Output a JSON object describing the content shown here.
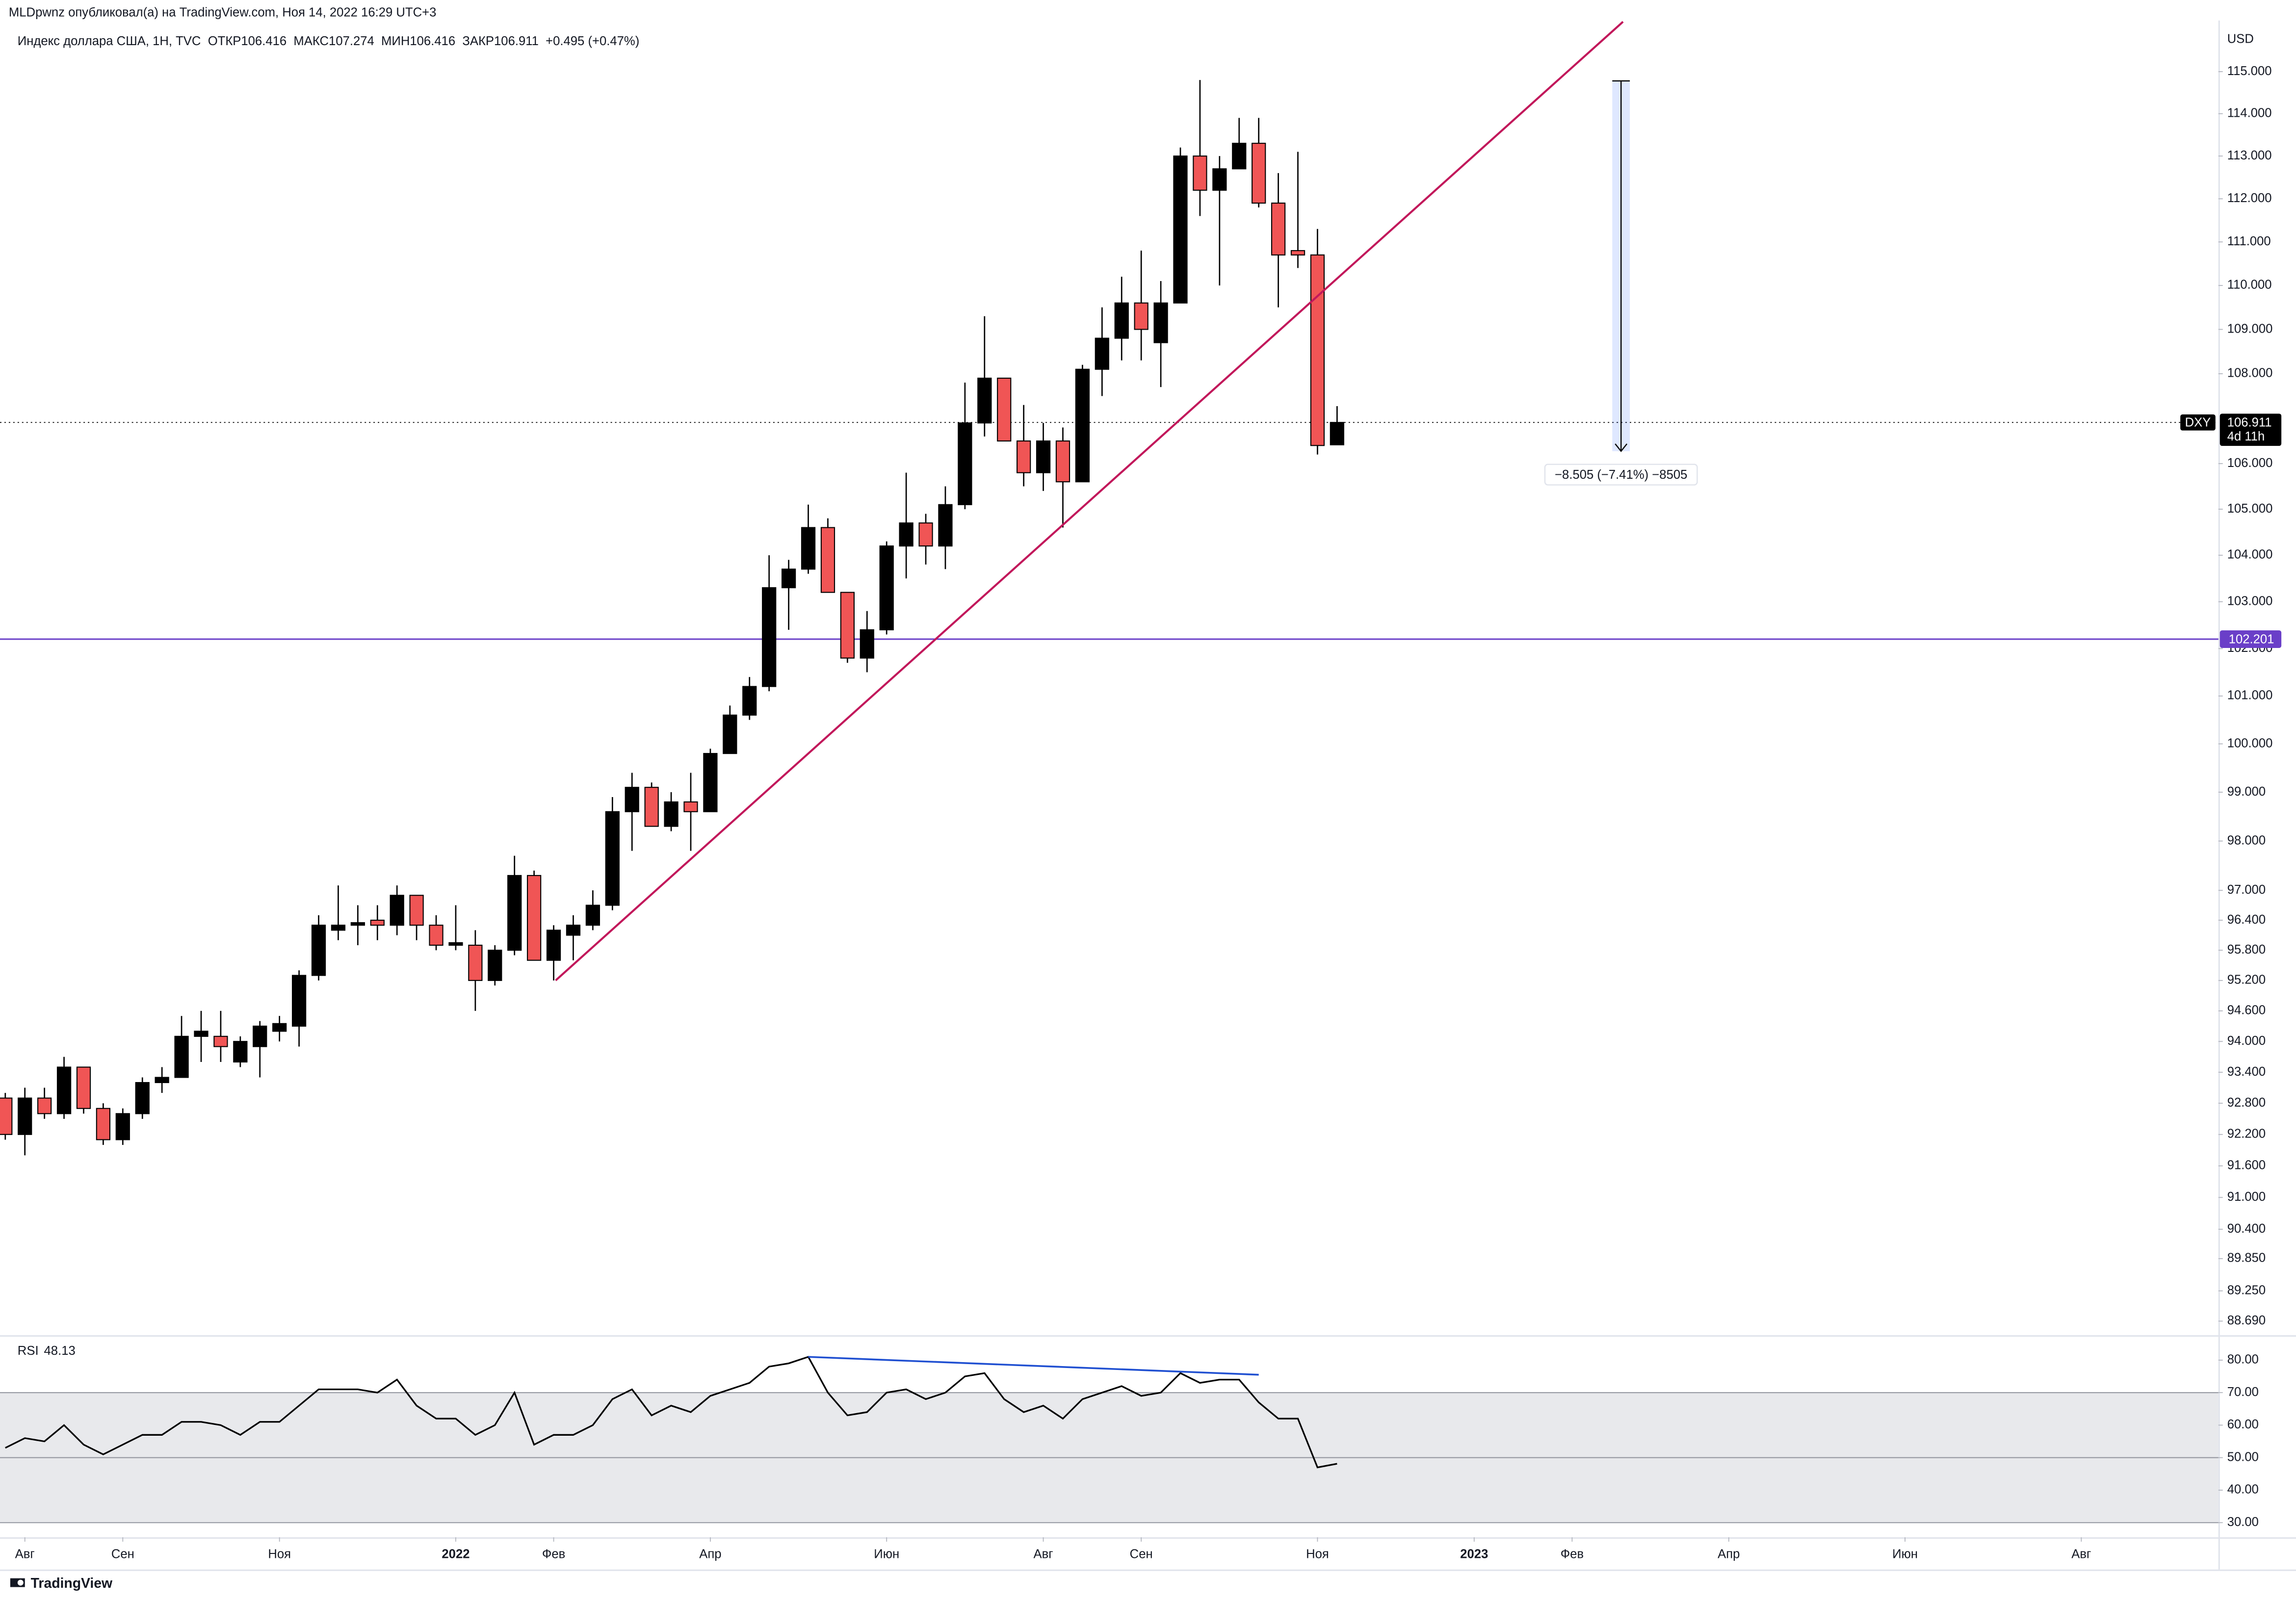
{
  "header": "MLDpwnz опубликовал(а) на TradingView.com, Ноя 14, 2022 16:29 UTC+3",
  "footer": "TradingView",
  "chart_data": [
    {
      "type": "candlestick",
      "title": "Индекс доллара США, 1Н, TVC  ОТКР106.416  МАКС107.274  МИН106.416  ЗАКР106.911  +0.495 (+0.47%)",
      "y_axis_label": "USD",
      "open": [
        92.9,
        92.2,
        92.9,
        92.6,
        93.5,
        92.7,
        92.1,
        92.6,
        93.2,
        93.3,
        94.1,
        94.1,
        93.6,
        93.9,
        94.2,
        94.3,
        95.3,
        96.2,
        96.3,
        96.4,
        96.3,
        96.9,
        96.3,
        95.9,
        95.9,
        95.2,
        95.8,
        97.3,
        95.6,
        96.1,
        96.3,
        96.7,
        98.6,
        99.1,
        98.3,
        98.8,
        98.6,
        99.8,
        100.6,
        101.2,
        103.3,
        103.7,
        104.6,
        103.2,
        101.8,
        102.4,
        104.2,
        104.7,
        104.2,
        105.1,
        106.9,
        107.9,
        106.5,
        105.8,
        106.5,
        105.6,
        108.1,
        108.8,
        109.6,
        108.7,
        109.6,
        113.0,
        112.2,
        112.7,
        113.3,
        111.9,
        110.8,
        110.7,
        106.416
      ],
      "high": [
        93.0,
        93.1,
        93.1,
        93.7,
        93.5,
        92.8,
        92.7,
        93.3,
        93.5,
        94.5,
        94.6,
        94.6,
        94.1,
        94.4,
        94.5,
        95.4,
        96.5,
        97.1,
        96.7,
        96.7,
        97.1,
        96.9,
        96.5,
        96.7,
        96.2,
        95.9,
        97.7,
        97.4,
        96.3,
        96.5,
        97.0,
        98.9,
        99.4,
        99.2,
        99.0,
        99.4,
        99.9,
        100.8,
        101.4,
        104.0,
        103.9,
        105.1,
        104.8,
        103.2,
        102.8,
        104.3,
        105.8,
        104.9,
        105.5,
        107.8,
        109.3,
        107.9,
        107.3,
        106.9,
        106.8,
        108.2,
        109.5,
        110.2,
        110.8,
        110.1,
        113.2,
        114.8,
        113.0,
        113.9,
        113.9,
        112.6,
        113.1,
        111.3,
        107.274
      ],
      "low": [
        92.1,
        91.8,
        92.5,
        92.5,
        92.6,
        92.0,
        92.0,
        92.5,
        93.0,
        93.3,
        93.6,
        93.6,
        93.5,
        93.3,
        94.0,
        93.9,
        95.2,
        96.0,
        95.9,
        96.0,
        96.1,
        96.0,
        95.8,
        95.8,
        94.6,
        95.1,
        95.7,
        95.6,
        95.2,
        95.6,
        96.2,
        96.6,
        97.8,
        98.3,
        98.2,
        97.8,
        98.6,
        99.8,
        100.5,
        101.1,
        102.4,
        103.6,
        103.2,
        101.7,
        101.5,
        102.3,
        103.5,
        103.8,
        103.7,
        105.0,
        106.6,
        106.5,
        105.5,
        105.4,
        104.6,
        105.6,
        107.5,
        108.3,
        108.3,
        107.7,
        109.6,
        111.6,
        110.0,
        112.7,
        111.8,
        109.5,
        110.4,
        106.2,
        106.416
      ],
      "close": [
        92.2,
        92.9,
        92.6,
        93.5,
        92.7,
        92.1,
        92.6,
        93.2,
        93.3,
        94.1,
        94.2,
        93.9,
        94.0,
        94.3,
        94.35,
        95.3,
        96.3,
        96.3,
        96.35,
        96.3,
        96.9,
        96.3,
        95.9,
        95.95,
        95.2,
        95.8,
        97.3,
        95.6,
        96.2,
        96.3,
        96.7,
        98.6,
        99.1,
        98.3,
        98.8,
        98.6,
        99.8,
        100.6,
        101.2,
        103.3,
        103.7,
        104.6,
        103.2,
        101.8,
        102.4,
        104.2,
        104.7,
        104.2,
        105.1,
        106.9,
        107.9,
        106.5,
        105.8,
        106.5,
        105.6,
        108.1,
        108.8,
        109.6,
        109.0,
        109.6,
        113.0,
        112.2,
        112.7,
        113.3,
        111.9,
        110.7,
        110.7,
        106.4,
        106.911
      ],
      "up_color": "#000000",
      "down_color": "#f05555",
      "log": true,
      "grid": false,
      "ylim": [
        88.43,
        116.23
      ],
      "yticks": [
        {
          "value": 115,
          "label": "115.000"
        },
        {
          "value": 114,
          "label": "114.000"
        },
        {
          "value": 113,
          "label": "113.000"
        },
        {
          "value": 112,
          "label": "112.000"
        },
        {
          "value": 111,
          "label": "111.000"
        },
        {
          "value": 110,
          "label": "110.000"
        },
        {
          "value": 109,
          "label": "109.000"
        },
        {
          "value": 108,
          "label": "108.000"
        },
        {
          "value": 106,
          "label": "106.000"
        },
        {
          "value": 105,
          "label": "105.000"
        },
        {
          "value": 104,
          "label": "104.000"
        },
        {
          "value": 103,
          "label": "103.000"
        },
        {
          "value": 102,
          "label": "102.000"
        },
        {
          "value": 101,
          "label": "101.000"
        },
        {
          "value": 100,
          "label": "100.000"
        },
        {
          "value": 99,
          "label": "99.000"
        },
        {
          "value": 98,
          "label": "98.000"
        },
        {
          "value": 97,
          "label": "97.000"
        },
        {
          "value": 96.4,
          "label": "96.400"
        },
        {
          "value": 95.8,
          "label": "95.800"
        },
        {
          "value": 95.2,
          "label": "95.200"
        },
        {
          "value": 94.6,
          "label": "94.600"
        },
        {
          "value": 94,
          "label": "94.000"
        },
        {
          "value": 93.4,
          "label": "93.400"
        },
        {
          "value": 92.8,
          "label": "92.800"
        },
        {
          "value": 92.2,
          "label": "92.200"
        },
        {
          "value": 91.6,
          "label": "91.600"
        },
        {
          "value": 91,
          "label": "91.000"
        },
        {
          "value": 90.4,
          "label": "90.400"
        },
        {
          "value": 89.85,
          "label": "89.850"
        },
        {
          "value": 89.25,
          "label": "89.250"
        },
        {
          "value": 88.69,
          "label": "88.690"
        }
      ],
      "xlim": [
        -0.27,
        113.0
      ],
      "xticks": [
        {
          "value": 1,
          "label": "Авг"
        },
        {
          "value": 6,
          "label": "Сен"
        },
        {
          "value": 14,
          "label": "Ноя"
        },
        {
          "value": 23,
          "label": "2022"
        },
        {
          "value": 28,
          "label": "Фев"
        },
        {
          "value": 36,
          "label": "Апр"
        },
        {
          "value": 45,
          "label": "Июн"
        },
        {
          "value": 53,
          "label": "Авг"
        },
        {
          "value": 58,
          "label": "Сен"
        },
        {
          "value": 67,
          "label": "Ноя"
        },
        {
          "value": 75,
          "label": "2023"
        },
        {
          "value": 80,
          "label": "Фев"
        },
        {
          "value": 88,
          "label": "Апр"
        },
        {
          "value": 97,
          "label": "Июн"
        },
        {
          "value": 106,
          "label": "Авг"
        }
      ],
      "price_line": {
        "name": "DXY",
        "value": 106.911,
        "countdown": "4d 11h",
        "color": "#000000"
      },
      "horizontal_line": {
        "value": 102.201,
        "color": "#6a3fc8"
      },
      "trendline": {
        "x": [
          28.1,
          82.6
        ],
        "y": [
          95.2,
          116.2
        ],
        "color": "#c2185b"
      },
      "measure": {
        "x": 82.5,
        "from": 114.779,
        "to": 106.274,
        "label": "−8.505 (−7.41%) −8505",
        "color": "#2962ff"
      }
    },
    {
      "type": "line",
      "series": [
        {
          "name": "RSI",
          "color": "#000000",
          "values": [
            53,
            56,
            55,
            60,
            54,
            51,
            54,
            57,
            57,
            61,
            61,
            60,
            57,
            61,
            61,
            66,
            71,
            71,
            71,
            70,
            74,
            66,
            62,
            62,
            57,
            60,
            70,
            54,
            57,
            57,
            60,
            68,
            71,
            63,
            66,
            64,
            69,
            71,
            73,
            78,
            79,
            81,
            70,
            63,
            64,
            70,
            71,
            68,
            70,
            75,
            76,
            68,
            64,
            66,
            62,
            68,
            70,
            72,
            69,
            70,
            76,
            73,
            74,
            74,
            67,
            62,
            62,
            47,
            48.13
          ]
        }
      ],
      "ylim": [
        25.5,
        87.2
      ],
      "yticks": [
        {
          "value": 80,
          "label": "80.00"
        },
        {
          "value": 70,
          "label": "70.00"
        },
        {
          "value": 60,
          "label": "60.00"
        },
        {
          "value": 50,
          "label": "50.00"
        },
        {
          "value": 40,
          "label": "40.00"
        },
        {
          "value": 30,
          "label": "30.00"
        }
      ],
      "band": [
        30,
        70
      ],
      "band_color": "#e8e9ec",
      "levels": [
        70,
        50,
        30
      ],
      "divergence": {
        "x": [
          41,
          64
        ],
        "y": [
          81,
          75.5
        ],
        "color": "#1f4fd1"
      }
    }
  ]
}
